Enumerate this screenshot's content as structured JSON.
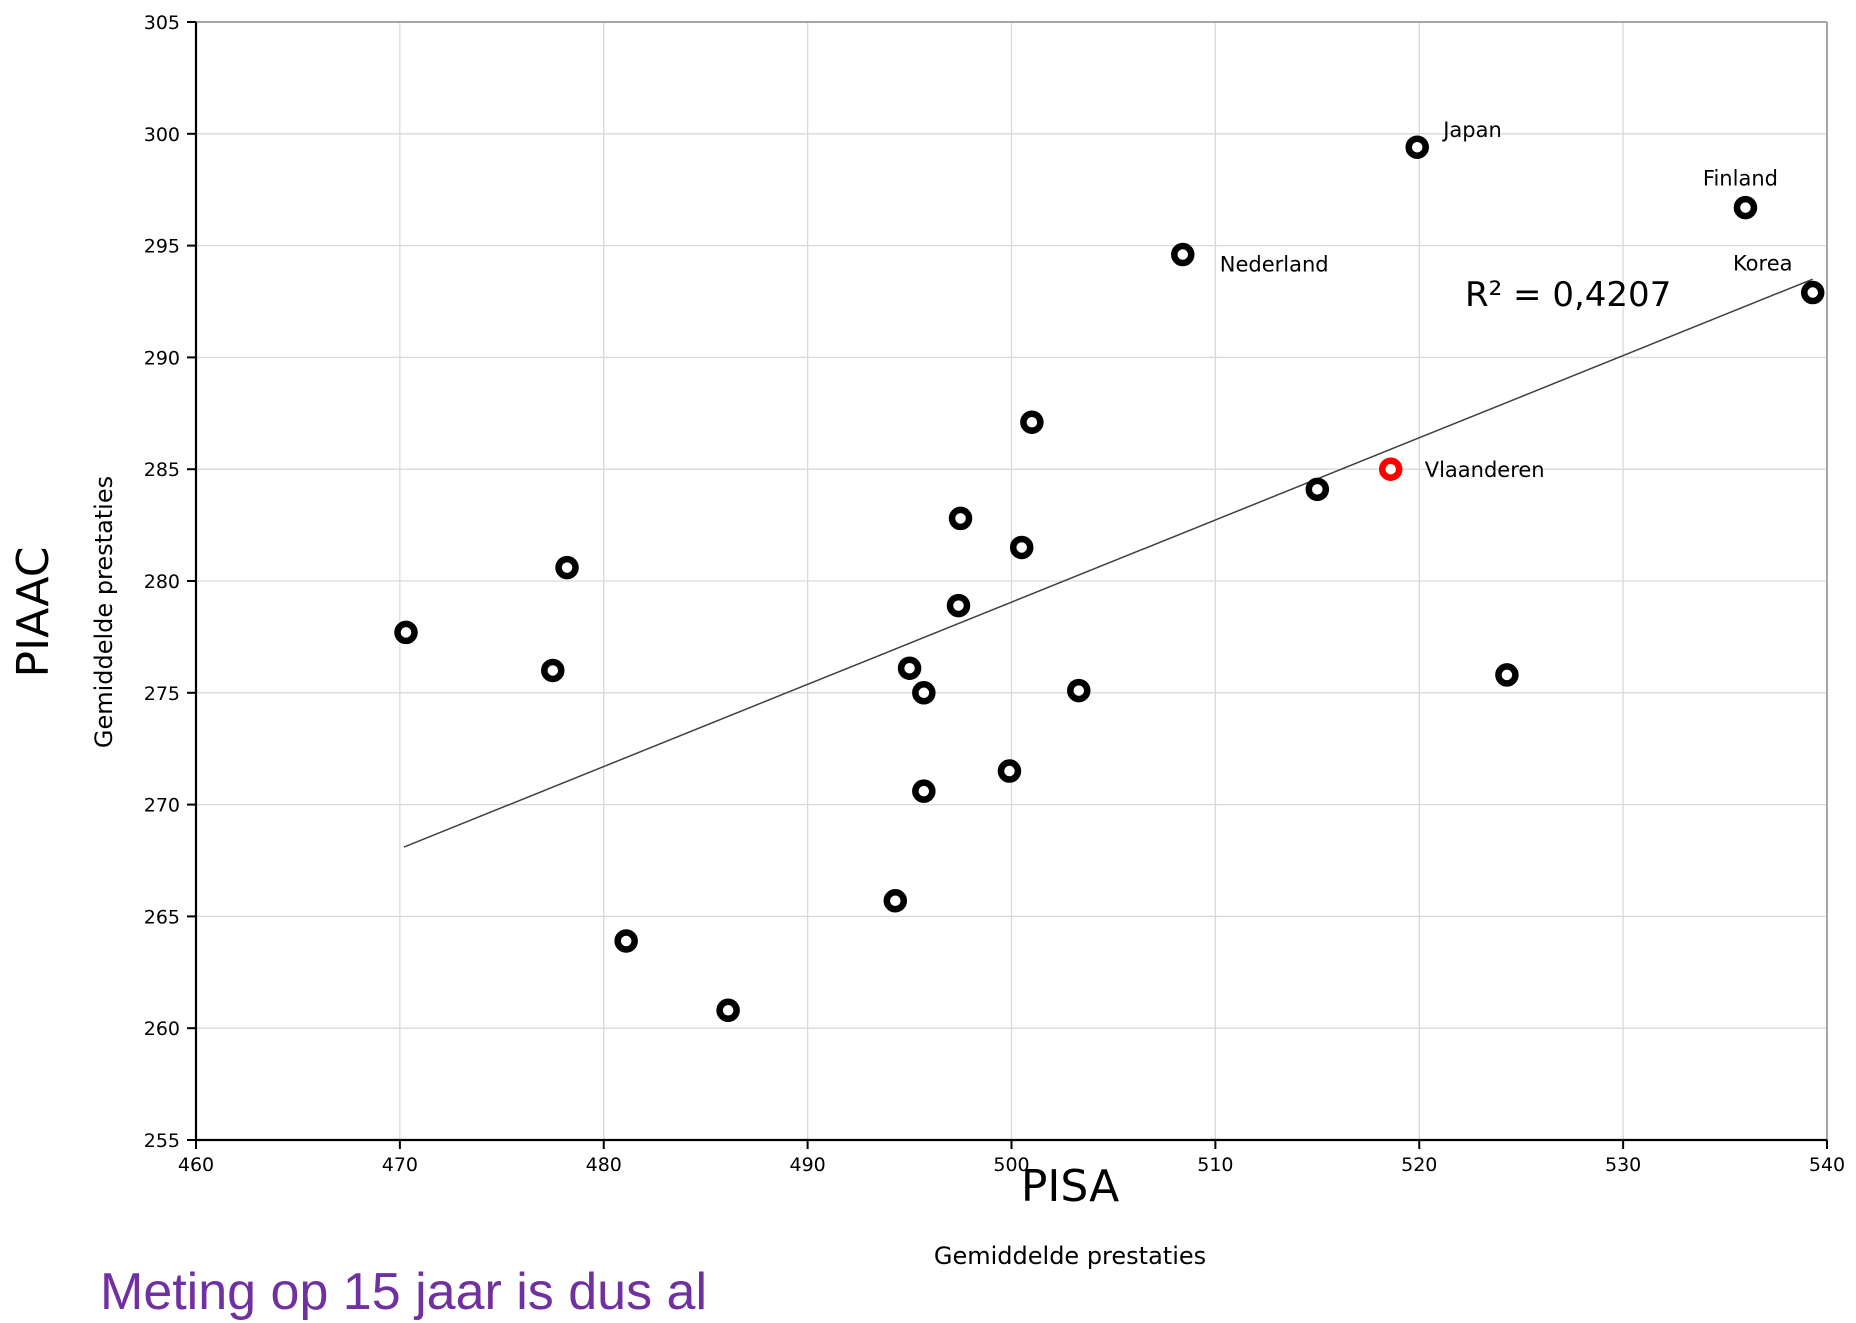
{
  "chart_data": {
    "type": "scatter",
    "xlabel": "PISA",
    "xlabel_sub": "Gemiddelde prestaties",
    "ylabel": "PIAAC",
    "ylabel_sub": "Gemiddelde prestaties",
    "xlim": [
      460,
      540
    ],
    "ylim": [
      255,
      305
    ],
    "xticks": [
      460,
      470,
      480,
      490,
      500,
      510,
      520,
      530,
      540
    ],
    "yticks": [
      255,
      260,
      265,
      270,
      275,
      280,
      285,
      290,
      295,
      300,
      305
    ],
    "grid": true,
    "annotation": "R² = 0,4207",
    "trendline": {
      "x": [
        470.2,
        539.3
      ],
      "y": [
        268.1,
        293.5
      ]
    },
    "colors": {
      "points": "#000000",
      "highlight": "#ff0000",
      "grid": "#d9d9d9",
      "trendline": "#404040"
    },
    "points": [
      {
        "x": 519.9,
        "y": 299.4,
        "label": "Japan"
      },
      {
        "x": 536.0,
        "y": 296.7,
        "label": "Finland"
      },
      {
        "x": 508.4,
        "y": 294.6,
        "label": "Nederland"
      },
      {
        "x": 539.3,
        "y": 292.9,
        "label": "Korea"
      },
      {
        "x": 518.6,
        "y": 285.0,
        "label": "Vlaanderen",
        "highlight": true
      },
      {
        "x": 501.0,
        "y": 287.1,
        "label": ""
      },
      {
        "x": 515.0,
        "y": 284.1,
        "label": ""
      },
      {
        "x": 497.5,
        "y": 282.8,
        "label": ""
      },
      {
        "x": 500.5,
        "y": 281.5,
        "label": ""
      },
      {
        "x": 478.2,
        "y": 280.6,
        "label": ""
      },
      {
        "x": 497.4,
        "y": 278.9,
        "label": ""
      },
      {
        "x": 470.3,
        "y": 277.7,
        "label": ""
      },
      {
        "x": 477.5,
        "y": 276.0,
        "label": ""
      },
      {
        "x": 495.0,
        "y": 276.1,
        "label": ""
      },
      {
        "x": 524.3,
        "y": 275.8,
        "label": ""
      },
      {
        "x": 495.7,
        "y": 275.0,
        "label": ""
      },
      {
        "x": 503.3,
        "y": 275.1,
        "label": ""
      },
      {
        "x": 499.9,
        "y": 271.5,
        "label": ""
      },
      {
        "x": 495.7,
        "y": 270.6,
        "label": ""
      },
      {
        "x": 494.3,
        "y": 265.7,
        "label": ""
      },
      {
        "x": 481.1,
        "y": 263.9,
        "label": ""
      },
      {
        "x": 486.1,
        "y": 260.8,
        "label": ""
      }
    ]
  },
  "caption": "Meting op 15 jaar is dus al"
}
